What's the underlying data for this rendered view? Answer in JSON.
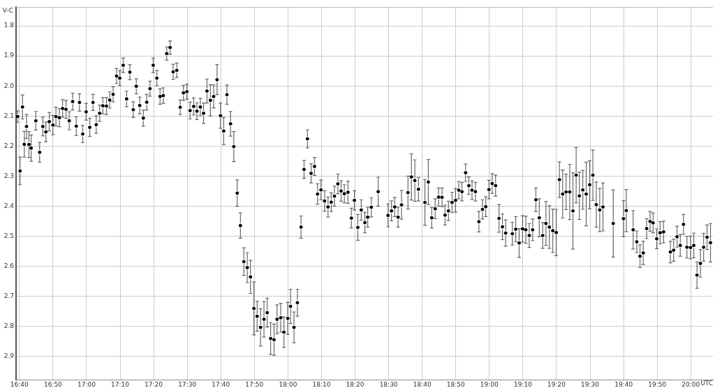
{
  "chart_data": {
    "type": "scatter",
    "xlabel": "UTC",
    "ylabel": "V-C",
    "color": "#000000",
    "marker": "circle",
    "grid": true,
    "xlim": [
      16.65,
      20.11
    ],
    "ylim": [
      2.978,
      1.737
    ],
    "xticks": [
      {
        "value": 16.6667,
        "label": "16:40"
      },
      {
        "value": 16.8333,
        "label": "16:50"
      },
      {
        "value": 17,
        "label": "17:00"
      },
      {
        "value": 17.1667,
        "label": "17:10"
      },
      {
        "value": 17.3333,
        "label": "17:20"
      },
      {
        "value": 17.5,
        "label": "17:30"
      },
      {
        "value": 17.6667,
        "label": "17:40"
      },
      {
        "value": 17.8333,
        "label": "17:50"
      },
      {
        "value": 18,
        "label": "18:00"
      },
      {
        "value": 18.1667,
        "label": "18:10"
      },
      {
        "value": 18.3333,
        "label": "18:20"
      },
      {
        "value": 18.5,
        "label": "18:30"
      },
      {
        "value": 18.6667,
        "label": "18:40"
      },
      {
        "value": 18.8333,
        "label": "18:50"
      },
      {
        "value": 19,
        "label": "19:00"
      },
      {
        "value": 19.1667,
        "label": "19:10"
      },
      {
        "value": 19.3333,
        "label": "19:20"
      },
      {
        "value": 19.5,
        "label": "19:30"
      },
      {
        "value": 19.6667,
        "label": "19:40"
      },
      {
        "value": 19.8333,
        "label": "19:50"
      },
      {
        "value": 20,
        "label": "20:00"
      }
    ],
    "yticks": [
      1.8,
      1.9,
      {
        "value": 2,
        "label": "2.0"
      },
      2.1,
      2.2,
      2.3,
      2.4,
      2.5,
      2.6,
      2.7,
      2.8,
      2.9
    ],
    "x": [
      16.658,
      16.67,
      16.682,
      16.691,
      16.702,
      16.714,
      16.725,
      16.748,
      16.767,
      16.783,
      16.798,
      16.815,
      16.833,
      16.848,
      16.865,
      16.881,
      16.898,
      16.914,
      16.931,
      16.949,
      16.965,
      16.981,
      16.998,
      17.016,
      17.032,
      17.048,
      17.065,
      17.081,
      17.099,
      17.115,
      17.132,
      17.149,
      17.165,
      17.182,
      17.199,
      17.215,
      17.232,
      17.247,
      17.264,
      17.282,
      17.299,
      17.315,
      17.331,
      17.349,
      17.365,
      17.381,
      17.398,
      17.415,
      17.43,
      17.448,
      17.465,
      17.481,
      17.498,
      17.514,
      17.532,
      17.548,
      17.565,
      17.581,
      17.598,
      17.615,
      17.631,
      17.648,
      17.665,
      17.681,
      17.697,
      17.715,
      17.731,
      17.748,
      17.764,
      17.781,
      17.798,
      17.814,
      17.831,
      17.847,
      17.864,
      17.881,
      17.897,
      17.914,
      17.931,
      17.946,
      17.964,
      17.98,
      17.999,
      18.013,
      18.03,
      18.047,
      18.065,
      18.08,
      18.097,
      18.115,
      18.132,
      18.147,
      18.164,
      18.182,
      18.199,
      18.215,
      18.231,
      18.248,
      18.264,
      18.28,
      18.298,
      18.315,
      18.33,
      18.347,
      18.364,
      18.382,
      18.396,
      18.414,
      18.448,
      18.497,
      18.514,
      18.53,
      18.547,
      18.564,
      18.596,
      18.613,
      18.63,
      18.648,
      18.68,
      18.697,
      18.714,
      18.731,
      18.748,
      18.765,
      18.78,
      18.797,
      18.815,
      18.832,
      18.848,
      18.864,
      18.882,
      18.898,
      18.914,
      18.931,
      18.948,
      18.966,
      18.982,
      18.998,
      19.014,
      19.031,
      19.048,
      19.065,
      19.081,
      19.114,
      19.131,
      19.148,
      19.165,
      19.181,
      19.198,
      19.215,
      19.231,
      19.248,
      19.265,
      19.281,
      19.298,
      19.315,
      19.332,
      19.348,
      19.364,
      19.381,
      19.399,
      19.415,
      19.431,
      19.447,
      19.464,
      19.481,
      19.498,
      19.514,
      19.531,
      19.548,
      19.564,
      19.615,
      19.666,
      19.68,
      19.714,
      19.732,
      19.748,
      19.764,
      19.781,
      19.798,
      19.813,
      19.831,
      19.848,
      19.865,
      19.899,
      19.915,
      19.932,
      19.948,
      19.964,
      19.981,
      19.999,
      20.015,
      20.031,
      20.048,
      20.064,
      20.081,
      20.098
    ],
    "values": [
      2.102,
      2.283,
      2.07,
      2.194,
      2.135,
      2.195,
      2.207,
      2.116,
      2.221,
      2.135,
      2.153,
      2.119,
      2.13,
      2.102,
      2.106,
      2.075,
      2.078,
      2.116,
      2.052,
      2.134,
      2.055,
      2.16,
      2.086,
      2.138,
      2.055,
      2.129,
      2.091,
      2.066,
      2.067,
      2.047,
      2.028,
      1.967,
      1.974,
      1.931,
      2.043,
      1.954,
      2.079,
      2.001,
      2.065,
      2.107,
      2.054,
      2.009,
      1.931,
      1.974,
      2.035,
      2.032,
      1.892,
      1.872,
      1.953,
      1.948,
      2.071,
      2.023,
      2.019,
      2.082,
      2.068,
      2.084,
      2.07,
      2.091,
      2.017,
      2.048,
      2.035,
      1.979,
      2.099,
      2.15,
      2.029,
      2.126,
      2.202,
      2.357,
      2.465,
      2.585,
      2.605,
      2.636,
      2.741,
      2.767,
      2.804,
      2.777,
      2.755,
      2.841,
      2.845,
      2.777,
      2.772,
      2.82,
      2.774,
      2.734,
      2.804,
      2.722,
      2.47,
      2.278,
      2.176,
      2.291,
      2.268,
      2.36,
      2.346,
      2.383,
      2.403,
      2.387,
      2.367,
      2.326,
      2.35,
      2.359,
      2.354,
      2.44,
      2.381,
      2.471,
      2.413,
      2.455,
      2.437,
      2.404,
      2.352,
      2.431,
      2.416,
      2.403,
      2.437,
      2.396,
      2.355,
      2.303,
      2.315,
      2.344,
      2.388,
      2.32,
      2.439,
      2.409,
      2.37,
      2.371,
      2.43,
      2.416,
      2.388,
      2.381,
      2.347,
      2.352,
      2.289,
      2.332,
      2.347,
      2.352,
      2.452,
      2.411,
      2.402,
      2.345,
      2.325,
      2.332,
      2.441,
      2.469,
      2.49,
      2.492,
      2.477,
      2.523,
      2.476,
      2.479,
      2.498,
      2.479,
      2.379,
      2.439,
      2.498,
      2.458,
      2.47,
      2.482,
      2.488,
      2.312,
      2.36,
      2.353,
      2.353,
      2.416,
      2.297,
      2.366,
      2.346,
      2.36,
      2.329,
      2.297,
      2.395,
      2.413,
      2.403,
      2.458,
      2.442,
      2.415,
      2.479,
      2.519,
      2.567,
      2.556,
      2.475,
      2.451,
      2.456,
      2.509,
      2.489,
      2.486,
      2.553,
      2.547,
      2.502,
      2.531,
      2.461,
      2.537,
      2.538,
      2.531,
      2.63,
      2.591,
      2.537,
      2.504,
      2.522
    ],
    "errors": [
      0.019,
      0.046,
      0.04,
      0.043,
      0.04,
      0.043,
      0.044,
      0.031,
      0.033,
      0.031,
      0.033,
      0.031,
      0.032,
      0.031,
      0.03,
      0.029,
      0.03,
      0.03,
      0.028,
      0.031,
      0.029,
      0.029,
      0.028,
      0.03,
      0.027,
      0.029,
      0.027,
      0.027,
      0.028,
      0.027,
      0.025,
      0.025,
      0.025,
      0.024,
      0.026,
      0.025,
      0.026,
      0.025,
      0.028,
      0.027,
      0.026,
      0.025,
      0.024,
      0.025,
      0.026,
      0.026,
      0.022,
      0.022,
      0.025,
      0.024,
      0.024,
      0.025,
      0.025,
      0.028,
      0.028,
      0.028,
      0.029,
      0.034,
      0.04,
      0.052,
      0.038,
      0.05,
      0.042,
      0.045,
      0.032,
      0.041,
      0.05,
      0.044,
      0.042,
      0.046,
      0.05,
      0.055,
      0.088,
      0.05,
      0.062,
      0.059,
      0.048,
      0.053,
      0.052,
      0.048,
      0.048,
      0.051,
      0.053,
      0.057,
      0.051,
      0.045,
      0.037,
      0.03,
      0.03,
      0.032,
      0.03,
      0.034,
      0.033,
      0.034,
      0.033,
      0.031,
      0.033,
      0.033,
      0.034,
      0.03,
      0.037,
      0.033,
      0.032,
      0.043,
      0.034,
      0.034,
      0.033,
      0.032,
      0.048,
      0.038,
      0.033,
      0.032,
      0.033,
      0.048,
      0.055,
      0.077,
      0.069,
      0.039,
      0.076,
      0.075,
      0.034,
      0.033,
      0.03,
      0.031,
      0.033,
      0.032,
      0.034,
      0.039,
      0.029,
      0.031,
      0.029,
      0.029,
      0.031,
      0.031,
      0.034,
      0.032,
      0.033,
      0.031,
      0.033,
      0.035,
      0.046,
      0.043,
      0.044,
      0.038,
      0.042,
      0.048,
      0.044,
      0.045,
      0.04,
      0.036,
      0.039,
      0.063,
      0.043,
      0.073,
      0.071,
      0.072,
      0.077,
      0.059,
      0.08,
      0.059,
      0.092,
      0.127,
      0.092,
      0.079,
      0.065,
      0.106,
      0.08,
      0.084,
      0.075,
      0.072,
      0.08,
      0.112,
      0.06,
      0.07,
      0.064,
      0.036,
      0.038,
      0.039,
      0.033,
      0.033,
      0.033,
      0.033,
      0.037,
      0.036,
      0.036,
      0.037,
      0.035,
      0.036,
      0.033,
      0.036,
      0.038,
      0.041,
      0.044,
      0.046,
      0.046,
      0.041,
      0.064
    ]
  }
}
